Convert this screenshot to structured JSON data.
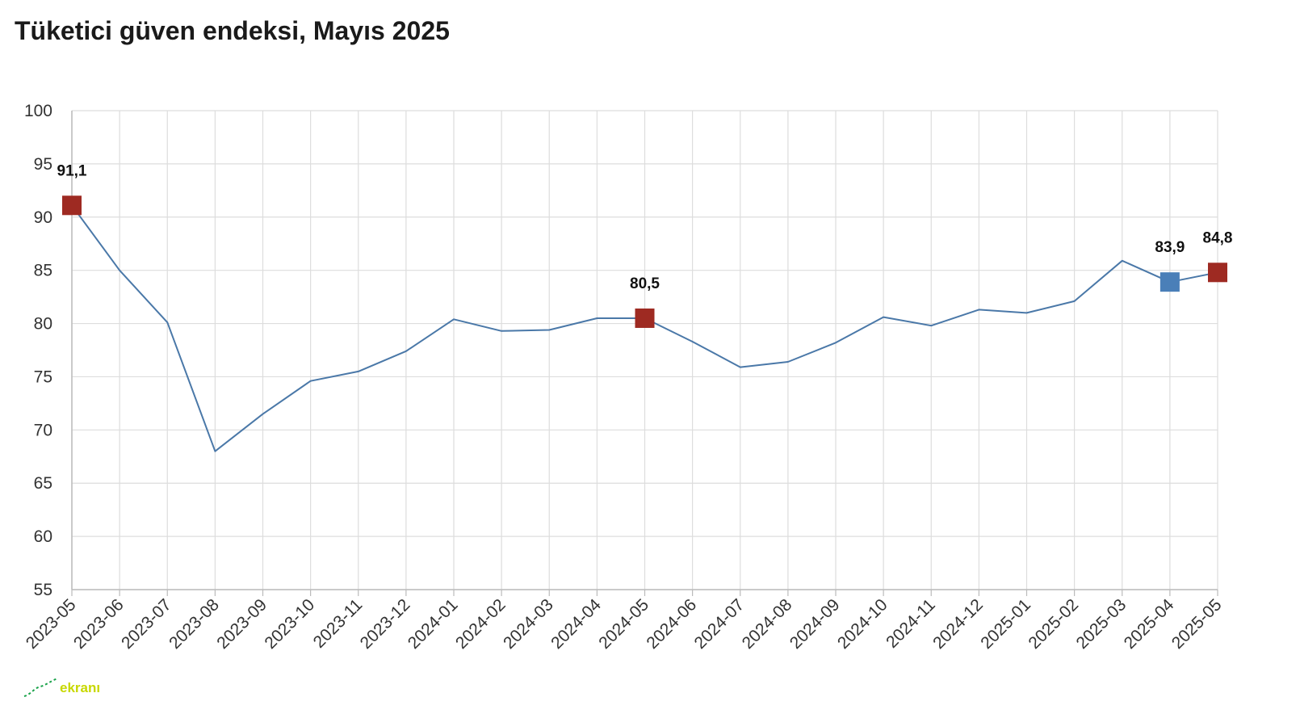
{
  "chart_data": {
    "type": "line",
    "title": "Tüketici güven endeksi, Mayıs 2025",
    "xlabel": "",
    "ylabel": "",
    "ylim": [
      55,
      100
    ],
    "yticks": [
      55,
      60,
      65,
      70,
      75,
      80,
      85,
      90,
      95,
      100
    ],
    "categories": [
      "2023-05",
      "2023-06",
      "2023-07",
      "2023-08",
      "2023-09",
      "2023-10",
      "2023-11",
      "2023-12",
      "2024-01",
      "2024-02",
      "2024-03",
      "2024-04",
      "2024-05",
      "2024-06",
      "2024-07",
      "2024-08",
      "2024-09",
      "2024-10",
      "2024-11",
      "2024-12",
      "2025-01",
      "2025-02",
      "2025-03",
      "2025-04",
      "2025-05"
    ],
    "series": [
      {
        "values": [
          91.1,
          85.0,
          80.1,
          68.0,
          71.5,
          74.6,
          75.5,
          77.4,
          80.4,
          79.3,
          79.4,
          80.5,
          80.5,
          78.3,
          75.9,
          76.4,
          78.2,
          80.6,
          79.8,
          81.3,
          81.0,
          82.1,
          85.9,
          83.9,
          84.8
        ],
        "color": "#4a78a8"
      }
    ],
    "annotations": [
      {
        "category": "2023-05",
        "value": 91.1,
        "label": "91,1",
        "marker_color": "#9e2a22"
      },
      {
        "category": "2024-05",
        "value": 80.5,
        "label": "80,5",
        "marker_color": "#9e2a22"
      },
      {
        "category": "2025-04",
        "value": 83.9,
        "label": "83,9",
        "marker_color": "#4a7fb8"
      },
      {
        "category": "2025-05",
        "value": 84.8,
        "label": "84,8",
        "marker_color": "#9e2a22"
      }
    ],
    "grid": true,
    "colors": {
      "line": "#4a78a8",
      "grid": "#dddddd",
      "axis": "#bbbbbb"
    }
  },
  "watermark": {
    "text": "ekranı"
  }
}
